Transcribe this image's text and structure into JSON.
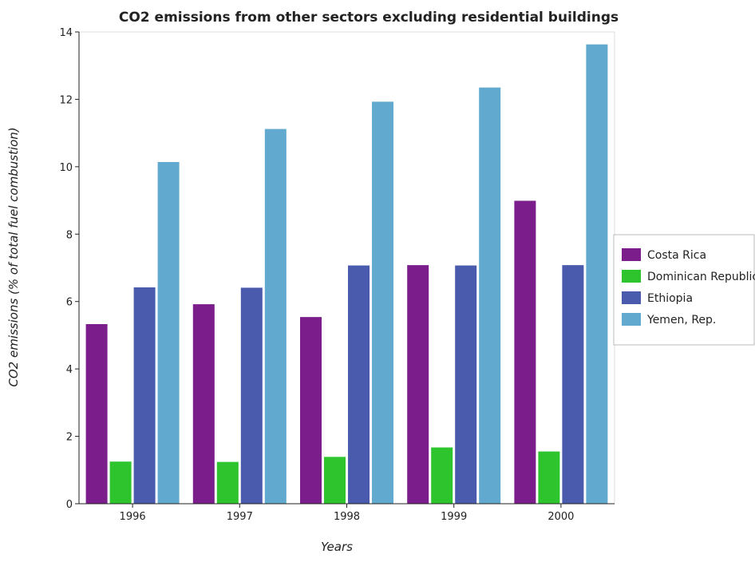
{
  "chart_data": {
    "type": "bar",
    "title": "CO2 emissions from other sectors excluding residential buildings",
    "xlabel": "Years",
    "ylabel": "CO2 emissions (% of total fuel combustion)",
    "categories": [
      "1996",
      "1997",
      "1998",
      "1999",
      "2000"
    ],
    "ylim": [
      0,
      14
    ],
    "yticks": [
      0,
      2,
      4,
      6,
      8,
      10,
      12,
      14
    ],
    "grid": false,
    "legend_position": "right",
    "series": [
      {
        "name": "Costa Rica",
        "color": "#7b1e8c",
        "values": [
          5.33,
          5.92,
          5.54,
          7.08,
          8.99
        ]
      },
      {
        "name": "Dominican Republic",
        "color": "#2ec42e",
        "values": [
          1.25,
          1.24,
          1.39,
          1.67,
          1.55
        ]
      },
      {
        "name": "Ethiopia",
        "color": "#4a5aad",
        "values": [
          6.42,
          6.41,
          7.07,
          7.07,
          7.08
        ]
      },
      {
        "name": "Yemen, Rep.",
        "color": "#62a9cf",
        "values": [
          10.14,
          11.12,
          11.93,
          12.35,
          13.63
        ]
      }
    ]
  }
}
